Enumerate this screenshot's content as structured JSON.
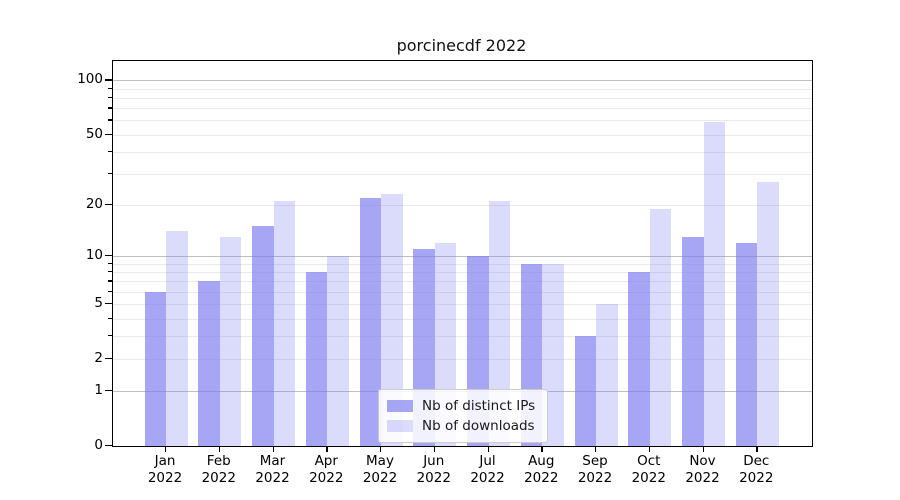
{
  "title": "porcinecdf 2022",
  "chart_data": {
    "type": "bar",
    "title": "porcinecdf 2022",
    "categories": [
      "Jan",
      "Feb",
      "Mar",
      "Apr",
      "May",
      "Jun",
      "Jul",
      "Aug",
      "Sep",
      "Oct",
      "Nov",
      "Dec"
    ],
    "category_year": "2022",
    "series": [
      {
        "name": "Nb of distinct IPs",
        "color": "rgba(123,123,239,0.67)",
        "values": [
          6,
          7,
          15,
          8,
          22,
          11,
          10,
          9,
          3,
          8,
          13,
          12
        ]
      },
      {
        "name": "Nb of downloads",
        "color": "rgba(123,123,239,0.27)",
        "values": [
          14,
          13,
          21,
          10,
          23,
          12,
          21,
          9,
          5,
          19,
          59,
          27
        ]
      }
    ],
    "yscale": "log1p",
    "ylim": [
      0,
      129
    ],
    "yticks": [
      0,
      1,
      2,
      5,
      10,
      20,
      50,
      100
    ],
    "grid_major": [
      1,
      10,
      100
    ],
    "grid_minor": [
      2,
      3,
      4,
      5,
      6,
      7,
      8,
      9,
      20,
      30,
      40,
      50,
      60,
      70,
      80,
      90
    ],
    "grid": "on",
    "legend_position": "lower center",
    "accent_color_hex": "#7b7bef"
  }
}
